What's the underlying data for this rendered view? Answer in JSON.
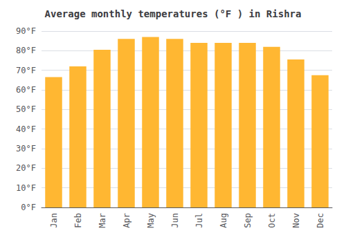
{
  "chart_data": {
    "type": "bar",
    "title": "Average monthly temperatures (°F ) in Rishra",
    "categories": [
      "Jan",
      "Feb",
      "Mar",
      "Apr",
      "May",
      "Jun",
      "Jul",
      "Aug",
      "Sep",
      "Oct",
      "Nov",
      "Dec"
    ],
    "values": [
      66.5,
      72.0,
      80.5,
      86.0,
      87.0,
      86.0,
      84.0,
      84.0,
      84.0,
      82.0,
      75.5,
      67.5
    ],
    "color": "#FFB732",
    "ylim": [
      0,
      90
    ],
    "yticks": [
      {
        "value": 0,
        "label": "0°F"
      },
      {
        "value": 10,
        "label": "10°F"
      },
      {
        "value": 20,
        "label": "20°F"
      },
      {
        "value": 30,
        "label": "30°F"
      },
      {
        "value": 40,
        "label": "40°F"
      },
      {
        "value": 50,
        "label": "50°F"
      },
      {
        "value": 60,
        "label": "60°F"
      },
      {
        "value": 70,
        "label": "70°F"
      },
      {
        "value": 80,
        "label": "80°F"
      },
      {
        "value": 90,
        "label": "90°F"
      }
    ],
    "grid": true
  }
}
